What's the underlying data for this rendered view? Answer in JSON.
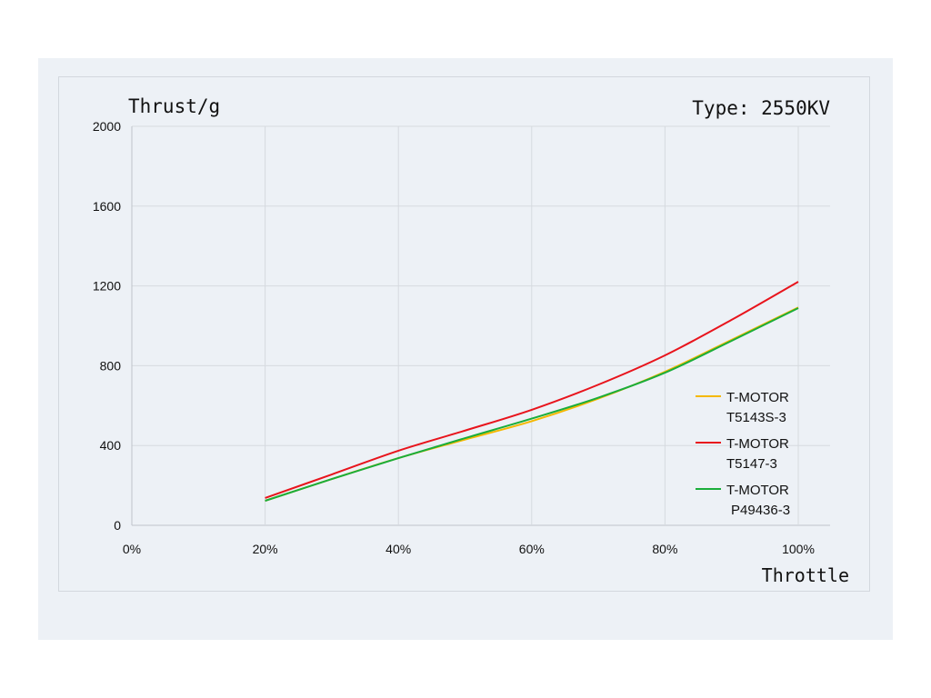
{
  "chart_data": {
    "type": "line",
    "title": "Type: 2550KV",
    "ylabel": "Thrust/g",
    "xlabel": "Throttle",
    "x": [
      20,
      30,
      40,
      50,
      60,
      70,
      80,
      90,
      100
    ],
    "xlim": [
      0,
      100
    ],
    "ylim": [
      0,
      2000
    ],
    "xticks": [
      "0%",
      "20%",
      "40%",
      "60%",
      "80%",
      "100%"
    ],
    "yticks": [
      "0",
      "400",
      "800",
      "1200",
      "1600",
      "2000"
    ],
    "grid": true,
    "legend_position": "right",
    "series": [
      {
        "name_line1": "T-MOTOR",
        "name_line2": "T5143S-3",
        "color": "#f5b800",
        "values": [
          123,
          232,
          337,
          430,
          522,
          635,
          770,
          930,
          1092
        ]
      },
      {
        "name_line1": "T-MOTOR",
        "name_line2": "T5147-3",
        "color": "#e8141c",
        "values": [
          137,
          255,
          374,
          475,
          579,
          705,
          852,
          1030,
          1221
        ]
      },
      {
        "name_line1": "T-MOTOR",
        "name_line2": "P49436-3",
        "color": "#1aad3a",
        "values": [
          123,
          232,
          337,
          437,
          535,
          640,
          765,
          925,
          1089
        ]
      }
    ]
  }
}
